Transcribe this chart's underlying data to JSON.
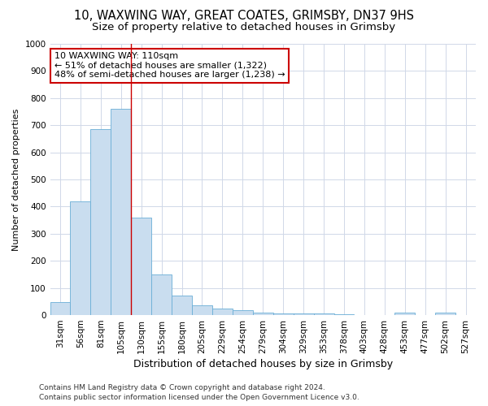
{
  "title1": "10, WAXWING WAY, GREAT COATES, GRIMSBY, DN37 9HS",
  "title2": "Size of property relative to detached houses in Grimsby",
  "xlabel": "Distribution of detached houses by size in Grimsby",
  "ylabel": "Number of detached properties",
  "categories": [
    "31sqm",
    "56sqm",
    "81sqm",
    "105sqm",
    "130sqm",
    "155sqm",
    "180sqm",
    "205sqm",
    "229sqm",
    "254sqm",
    "279sqm",
    "304sqm",
    "329sqm",
    "353sqm",
    "378sqm",
    "403sqm",
    "428sqm",
    "453sqm",
    "477sqm",
    "502sqm",
    "527sqm"
  ],
  "values": [
    47,
    420,
    685,
    760,
    360,
    150,
    72,
    37,
    25,
    17,
    10,
    5,
    5,
    5,
    2,
    0,
    0,
    10,
    0,
    10,
    0
  ],
  "bar_color": "#c9ddef",
  "bar_edge_color": "#6aaed6",
  "grid_color": "#d0d8e8",
  "annotation_line1": "10 WAXWING WAY: 110sqm",
  "annotation_line2": "← 51% of detached houses are smaller (1,322)",
  "annotation_line3": "48% of semi-detached houses are larger (1,238) →",
  "annotation_box_color": "#ffffff",
  "annotation_box_edge_color": "#cc0000",
  "vline_x": 3.5,
  "vline_color": "#cc0000",
  "footer1": "Contains HM Land Registry data © Crown copyright and database right 2024.",
  "footer2": "Contains public sector information licensed under the Open Government Licence v3.0.",
  "ylim": [
    0,
    1000
  ],
  "yticks": [
    0,
    100,
    200,
    300,
    400,
    500,
    600,
    700,
    800,
    900,
    1000
  ],
  "background_color": "#ffffff",
  "title1_fontsize": 10.5,
  "title2_fontsize": 9.5,
  "xlabel_fontsize": 9,
  "ylabel_fontsize": 8,
  "tick_fontsize": 7.5,
  "annotation_fontsize": 8,
  "footer_fontsize": 6.5
}
